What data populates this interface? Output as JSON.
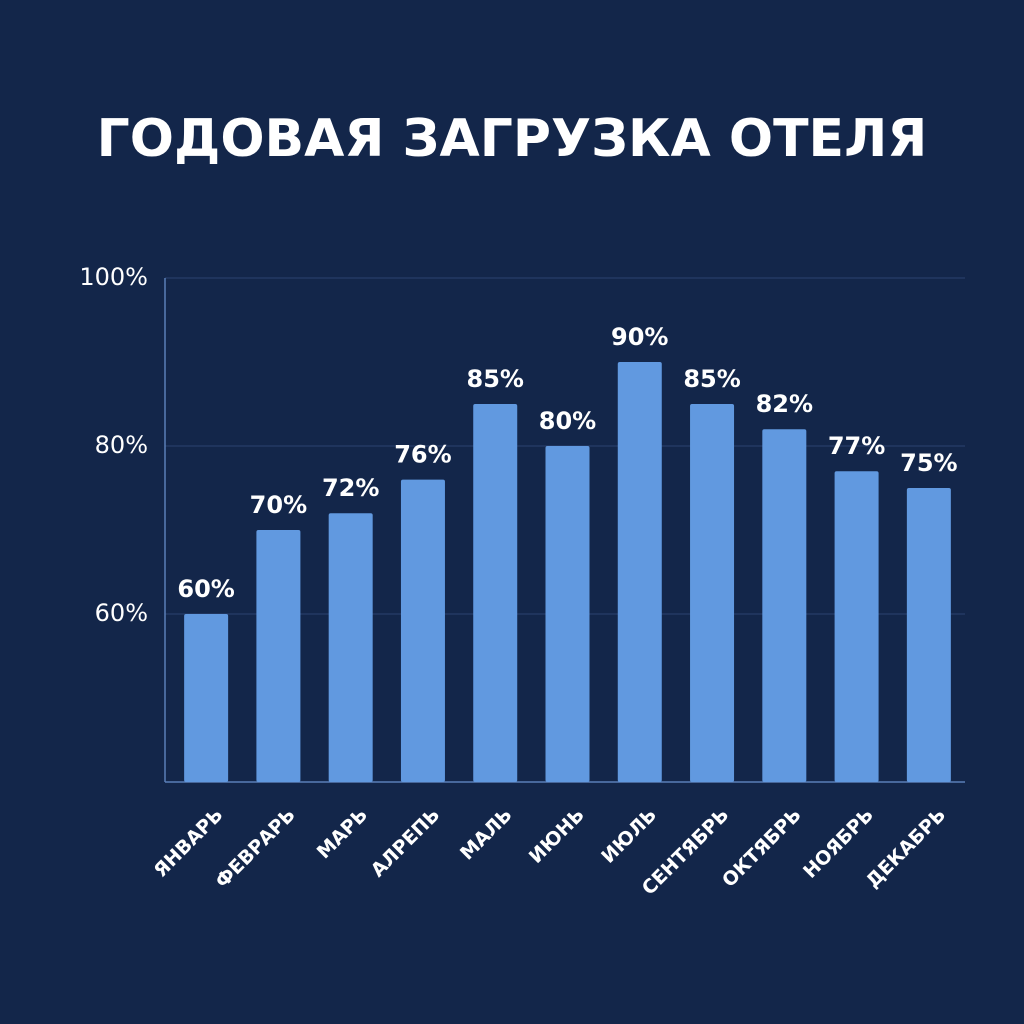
{
  "chart_data": {
    "type": "bar",
    "title": "ГОДОВАЯ ЗАГРУЗКА ОТЕЛЯ",
    "categories": [
      "ЯНВАРЬ",
      "ФЕВРАРЬ",
      "МАРЬ",
      "АЛРЕПЬ",
      "МАЛЬ",
      "ИЮНЬ",
      "ИЮЛЬ",
      "СЕНТЯБРЬ",
      "ОКТЯБРЬ",
      "НОЯБРЬ",
      "ДЕКАБРЬ"
    ],
    "values": [
      60,
      70,
      72,
      76,
      85,
      80,
      90,
      85,
      82,
      77,
      75
    ],
    "value_labels": [
      "60%",
      "70%",
      "72%",
      "76%",
      "85%",
      "80%",
      "90%",
      "85%",
      "82%",
      "77%",
      "75%"
    ],
    "color": "#6199e0",
    "ylim": [
      40,
      100
    ],
    "yticks": [
      {
        "value": 60,
        "label": "60%"
      },
      {
        "value": 80,
        "label": "80%"
      },
      {
        "value": 100,
        "label": "100%"
      }
    ],
    "grid": true
  }
}
